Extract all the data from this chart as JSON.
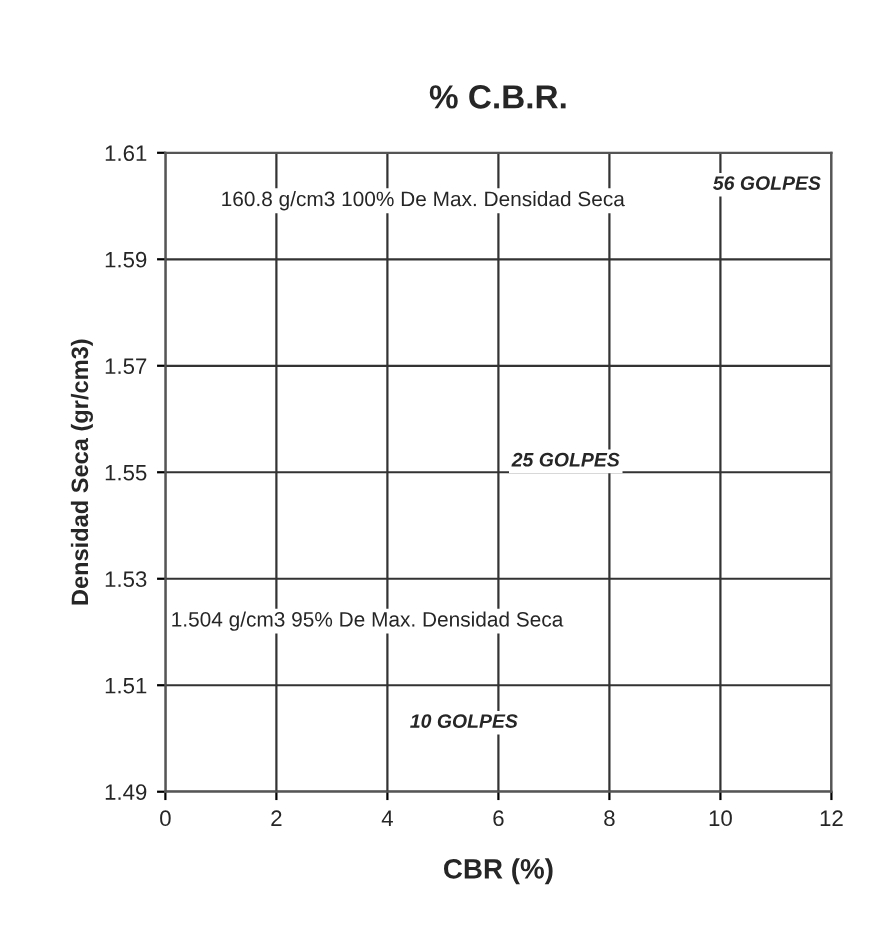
{
  "chart_data": {
    "type": "scatter",
    "title": "% C.B.R.",
    "xlabel": "CBR (%)",
    "ylabel": "Densidad Seca (gr/cm3)",
    "xlim": [
      0,
      12
    ],
    "xticks": [
      0,
      2,
      4,
      6,
      8,
      10,
      12
    ],
    "ylim": [
      1.49,
      1.61
    ],
    "yticks": [
      1.49,
      1.51,
      1.53,
      1.55,
      1.57,
      1.59,
      1.61
    ],
    "grid": true,
    "annotations": [
      "160.8 g/cm3 100% De Max. Densidad Seca",
      "56 GOLPES",
      "25 GOLPES",
      "1.504 g/cm3 95% De Max. Densidad Seca",
      "10 GOLPES"
    ]
  }
}
